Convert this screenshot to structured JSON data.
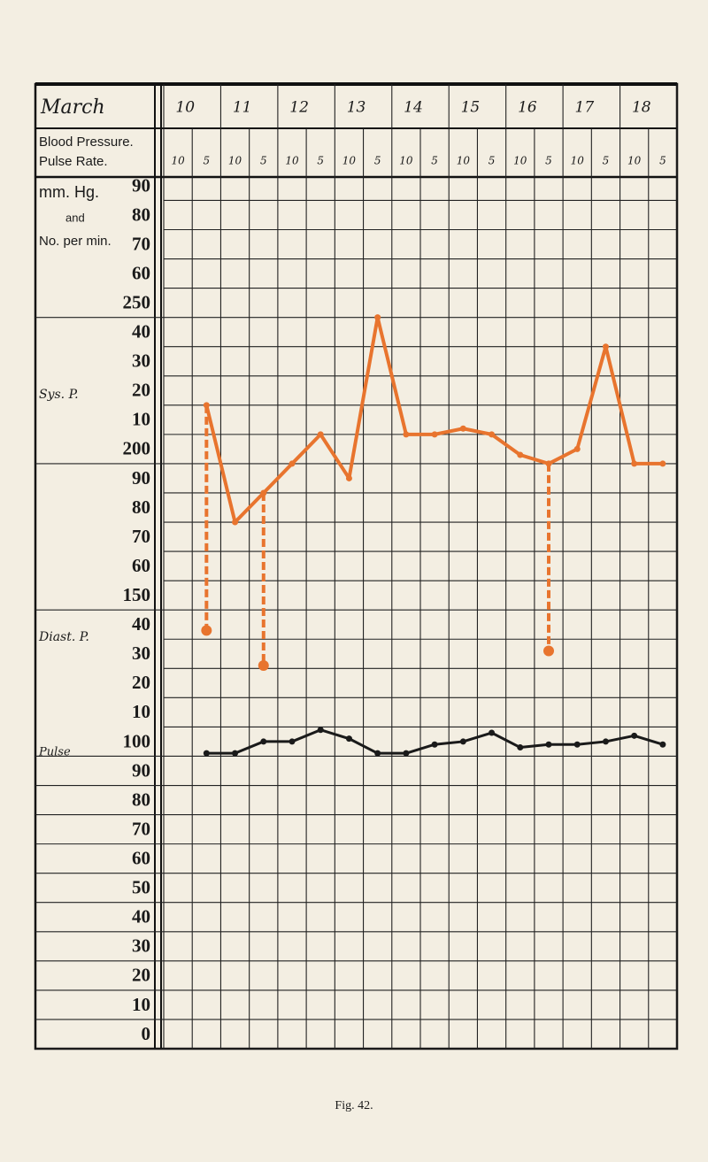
{
  "chart_data": {
    "type": "line",
    "header": {
      "month": "March",
      "row_label": [
        "Blood Pressure.",
        "Pulse Rate."
      ]
    },
    "days": [
      "10",
      "11",
      "12",
      "13",
      "14",
      "15",
      "16",
      "17",
      "18"
    ],
    "categories": [
      "10",
      "5",
      "10",
      "5",
      "10",
      "5",
      "10",
      "5",
      "10",
      "5",
      "10",
      "5",
      "10",
      "5",
      "10",
      "5",
      "10",
      "5"
    ],
    "annotations": [
      "mm. Hg.",
      "and",
      "No. per min.",
      "Sys. P.",
      "Diast. P.",
      "Pulse"
    ],
    "series": [
      {
        "name": "Sys. P.",
        "color": "#e8742e",
        "values": [
          null,
          220,
          180,
          190,
          200,
          210,
          195,
          250,
          210,
          210,
          212,
          210,
          203,
          200,
          205,
          240,
          200,
          200
        ]
      },
      {
        "name": "Diast. P.",
        "color": "#e8742e",
        "values": [
          null,
          143,
          null,
          131,
          null,
          null,
          null,
          null,
          null,
          null,
          null,
          null,
          null,
          136,
          null,
          null,
          null,
          null
        ]
      },
      {
        "name": "Pulse",
        "color": "#1a1a1a",
        "values": [
          null,
          101,
          101,
          105,
          105,
          109,
          106,
          101,
          101,
          104,
          105,
          108,
          103,
          104,
          104,
          105,
          107,
          104
        ]
      }
    ],
    "ylim": [
      0,
      298
    ],
    "yticks": [
      0,
      10,
      20,
      30,
      40,
      50,
      60,
      70,
      80,
      90,
      100,
      {
        "value": 110,
        "label": "10"
      },
      {
        "value": 120,
        "label": "20"
      },
      {
        "value": 130,
        "label": "30"
      },
      {
        "value": 140,
        "label": "40"
      },
      150,
      {
        "value": 160,
        "label": "60"
      },
      {
        "value": 170,
        "label": "70"
      },
      {
        "value": 180,
        "label": "80"
      },
      {
        "value": 190,
        "label": "90"
      },
      200,
      {
        "value": 210,
        "label": "10"
      },
      {
        "value": 220,
        "label": "20"
      },
      {
        "value": 230,
        "label": "30"
      },
      {
        "value": 240,
        "label": "40"
      },
      250,
      {
        "value": 260,
        "label": "60"
      },
      {
        "value": 270,
        "label": "70"
      },
      {
        "value": 280,
        "label": "80"
      },
      {
        "value": 290,
        "label": "90"
      }
    ],
    "caption": "Fig. 42."
  }
}
